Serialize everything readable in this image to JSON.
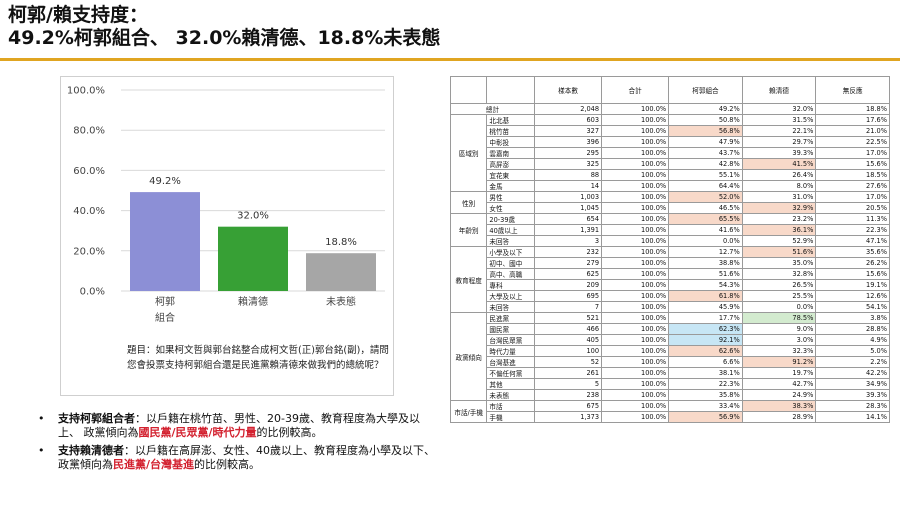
{
  "title": {
    "line1": "柯郭/賴支持度：",
    "line2": "49.2%柯郭組合、 32.0%賴清德、18.8%未表態"
  },
  "chart_data": {
    "type": "bar",
    "categories": [
      "柯郭\n組合",
      "賴清德",
      "未表態"
    ],
    "values": [
      49.2,
      32.0,
      18.8
    ],
    "value_labels": [
      "49.2%",
      "32.0%",
      "18.8%"
    ],
    "colors": [
      "#8c8fd6",
      "#37a035",
      "#a6a6a6"
    ],
    "yticks": [
      "0.0%",
      "20.0%",
      "40.0%",
      "60.0%",
      "80.0%",
      "100.0%"
    ],
    "ylim": [
      0,
      100
    ],
    "title": "",
    "xlabel": "",
    "ylabel": "",
    "grid": true
  },
  "question": "題目：如果柯文哲與郭台銘整合成柯文哲(正)郭台銘(副)，請問您會投票支持柯郭組合還是民進黨賴清德來做我們的總統呢？",
  "bullets": [
    {
      "dot": "•",
      "lead": "支持柯郭組合者",
      "mid": "：以戶籍在桃竹苗、男性、20-39歲、教育程度為大學及以上、 政黨傾向為",
      "hl": "國民黨/民眾黨/時代力量",
      "tail": "的比例較高。"
    },
    {
      "dot": "•",
      "lead": "支持賴清德者",
      "mid": "：以戶籍在高屏澎、女性、40歲以上、教育程度為小學及以下、政黨傾向為",
      "hl": "民進黨/台灣基進",
      "tail": "的比例較高。"
    }
  ],
  "table": {
    "headers": [
      "",
      "",
      "樣本數",
      "合計",
      "柯郭組合",
      "賴清德",
      "無反應"
    ],
    "total": {
      "label": "總計",
      "cells": [
        "2,048",
        "100.0%",
        "49.2%",
        "32.0%",
        "18.8%"
      ]
    },
    "groups": [
      {
        "name": "區域別",
        "rows": [
          {
            "label": "北北基",
            "cells": [
              "603",
              "100.0%",
              "50.8%",
              "31.5%",
              "17.6%"
            ],
            "hl": [
              null,
              null,
              null,
              null,
              null
            ]
          },
          {
            "label": "桃竹苗",
            "cells": [
              "327",
              "100.0%",
              "56.8%",
              "22.1%",
              "21.0%"
            ],
            "hl": [
              null,
              null,
              "r",
              null,
              null
            ]
          },
          {
            "label": "中彰投",
            "cells": [
              "396",
              "100.0%",
              "47.9%",
              "29.7%",
              "22.5%"
            ],
            "hl": [
              null,
              null,
              null,
              null,
              null
            ]
          },
          {
            "label": "雲嘉南",
            "cells": [
              "295",
              "100.0%",
              "43.7%",
              "39.3%",
              "17.0%"
            ],
            "hl": [
              null,
              null,
              null,
              null,
              null
            ]
          },
          {
            "label": "高屏澎",
            "cells": [
              "325",
              "100.0%",
              "42.8%",
              "41.5%",
              "15.6%"
            ],
            "hl": [
              null,
              null,
              null,
              "r",
              null
            ]
          },
          {
            "label": "宜花東",
            "cells": [
              "88",
              "100.0%",
              "55.1%",
              "26.4%",
              "18.5%"
            ],
            "hl": [
              null,
              null,
              null,
              null,
              null
            ]
          },
          {
            "label": "金馬",
            "cells": [
              "14",
              "100.0%",
              "64.4%",
              "8.0%",
              "27.6%"
            ],
            "hl": [
              null,
              null,
              null,
              null,
              null
            ]
          }
        ]
      },
      {
        "name": "性別",
        "rows": [
          {
            "label": "男性",
            "cells": [
              "1,003",
              "100.0%",
              "52.0%",
              "31.0%",
              "17.0%"
            ],
            "hl": [
              null,
              null,
              "r",
              null,
              null
            ]
          },
          {
            "label": "女性",
            "cells": [
              "1,045",
              "100.0%",
              "46.5%",
              "32.9%",
              "20.5%"
            ],
            "hl": [
              null,
              null,
              null,
              "r",
              null
            ]
          }
        ]
      },
      {
        "name": "年齡別",
        "rows": [
          {
            "label": "20-39歲",
            "cells": [
              "654",
              "100.0%",
              "65.5%",
              "23.2%",
              "11.3%"
            ],
            "hl": [
              null,
              null,
              "r",
              null,
              null
            ]
          },
          {
            "label": "40歲以上",
            "cells": [
              "1,391",
              "100.0%",
              "41.6%",
              "36.1%",
              "22.3%"
            ],
            "hl": [
              null,
              null,
              null,
              "r",
              null
            ]
          },
          {
            "label": "未回答",
            "cells": [
              "3",
              "100.0%",
              "0.0%",
              "52.9%",
              "47.1%"
            ],
            "hl": [
              null,
              null,
              null,
              null,
              null
            ]
          }
        ]
      },
      {
        "name": "教育程度",
        "rows": [
          {
            "label": "小學及以下",
            "cells": [
              "232",
              "100.0%",
              "12.7%",
              "51.6%",
              "35.6%"
            ],
            "hl": [
              null,
              null,
              null,
              "r",
              null
            ]
          },
          {
            "label": "初中、國中",
            "cells": [
              "279",
              "100.0%",
              "38.8%",
              "35.0%",
              "26.2%"
            ],
            "hl": [
              null,
              null,
              null,
              null,
              null
            ]
          },
          {
            "label": "高中、高職",
            "cells": [
              "625",
              "100.0%",
              "51.6%",
              "32.8%",
              "15.6%"
            ],
            "hl": [
              null,
              null,
              null,
              null,
              null
            ]
          },
          {
            "label": "專科",
            "cells": [
              "209",
              "100.0%",
              "54.3%",
              "26.5%",
              "19.1%"
            ],
            "hl": [
              null,
              null,
              null,
              null,
              null
            ]
          },
          {
            "label": "大學及以上",
            "cells": [
              "695",
              "100.0%",
              "61.8%",
              "25.5%",
              "12.6%"
            ],
            "hl": [
              null,
              null,
              "r",
              null,
              null
            ]
          },
          {
            "label": "未回答",
            "cells": [
              "7",
              "100.0%",
              "45.9%",
              "0.0%",
              "54.1%"
            ],
            "hl": [
              null,
              null,
              null,
              null,
              null
            ]
          }
        ]
      },
      {
        "name": "政黨傾向",
        "rows": [
          {
            "label": "民進黨",
            "cells": [
              "521",
              "100.0%",
              "17.7%",
              "78.5%",
              "3.8%"
            ],
            "hl": [
              null,
              null,
              null,
              "g",
              null
            ]
          },
          {
            "label": "國民黨",
            "cells": [
              "466",
              "100.0%",
              "62.3%",
              "9.0%",
              "28.8%"
            ],
            "hl": [
              null,
              null,
              "b",
              null,
              null
            ]
          },
          {
            "label": "台灣民眾黨",
            "cells": [
              "405",
              "100.0%",
              "92.1%",
              "3.0%",
              "4.9%"
            ],
            "hl": [
              null,
              null,
              "b",
              null,
              null
            ]
          },
          {
            "label": "時代力量",
            "cells": [
              "100",
              "100.0%",
              "62.6%",
              "32.3%",
              "5.0%"
            ],
            "hl": [
              null,
              null,
              "r",
              null,
              null
            ]
          },
          {
            "label": "台灣基進",
            "cells": [
              "52",
              "100.0%",
              "6.6%",
              "91.2%",
              "2.2%"
            ],
            "hl": [
              null,
              null,
              null,
              "r",
              null
            ]
          },
          {
            "label": "不偏任何黨",
            "cells": [
              "261",
              "100.0%",
              "38.1%",
              "19.7%",
              "42.2%"
            ],
            "hl": [
              null,
              null,
              null,
              null,
              null
            ]
          },
          {
            "label": "其他",
            "cells": [
              "5",
              "100.0%",
              "22.3%",
              "42.7%",
              "34.9%"
            ],
            "hl": [
              null,
              null,
              null,
              null,
              null
            ]
          },
          {
            "label": "未表態",
            "cells": [
              "238",
              "100.0%",
              "35.8%",
              "24.9%",
              "39.3%"
            ],
            "hl": [
              null,
              null,
              null,
              null,
              null
            ]
          }
        ]
      },
      {
        "name": "市話/手機",
        "rows": [
          {
            "label": "市話",
            "cells": [
              "675",
              "100.0%",
              "33.4%",
              "38.3%",
              "28.3%"
            ],
            "hl": [
              null,
              null,
              null,
              "r",
              null
            ]
          },
          {
            "label": "手機",
            "cells": [
              "1,373",
              "100.0%",
              "56.9%",
              "28.9%",
              "14.1%"
            ],
            "hl": [
              null,
              null,
              "r",
              null,
              null
            ]
          }
        ]
      }
    ]
  }
}
